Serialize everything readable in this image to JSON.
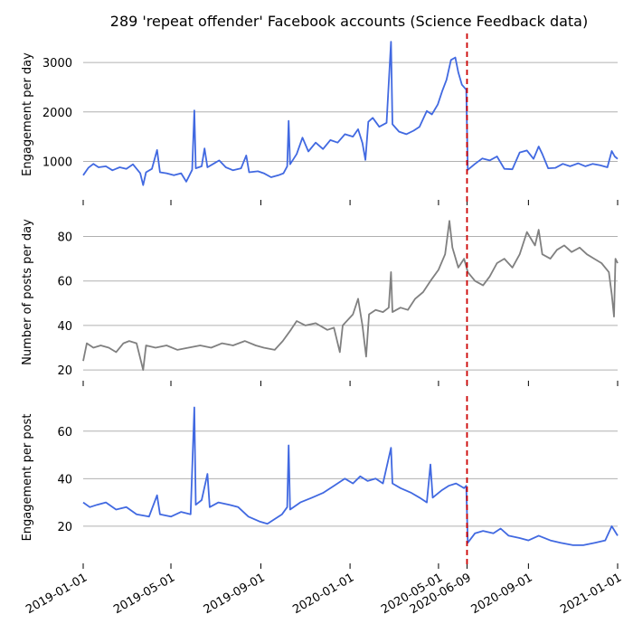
{
  "chart_data": {
    "type": "line",
    "title": "289 'repeat offender' Facebook accounts (Science Feedback data)",
    "x_range": [
      "2019-01-01",
      "2021-01-01"
    ],
    "x_ticks": [
      "2019-01-01",
      "2019-05-01",
      "2019-09-01",
      "2020-01-01",
      "2020-05-01",
      "2020-06-09",
      "2020-09-01",
      "2021-01-01"
    ],
    "highlight_tick": "2020-06-09",
    "highlight_color": "#ff0000",
    "vline": {
      "x": "2020-06-09",
      "color": "#cc0000",
      "style": "dashed"
    },
    "grid": "y-only",
    "panels": [
      {
        "ylabel": "Engagement per day",
        "color": "#4169e1",
        "ylim": [
          350,
          3550
        ],
        "yticks": [
          1000,
          2000,
          3000
        ],
        "series": [
          {
            "x": "2019-01-01",
            "y": 720
          },
          {
            "x": "2019-01-08",
            "y": 870
          },
          {
            "x": "2019-01-15",
            "y": 950
          },
          {
            "x": "2019-01-22",
            "y": 880
          },
          {
            "x": "2019-02-01",
            "y": 900
          },
          {
            "x": "2019-02-10",
            "y": 820
          },
          {
            "x": "2019-02-20",
            "y": 880
          },
          {
            "x": "2019-03-01",
            "y": 850
          },
          {
            "x": "2019-03-10",
            "y": 940
          },
          {
            "x": "2019-03-20",
            "y": 760
          },
          {
            "x": "2019-03-24",
            "y": 520
          },
          {
            "x": "2019-03-28",
            "y": 780
          },
          {
            "x": "2019-04-05",
            "y": 850
          },
          {
            "x": "2019-04-12",
            "y": 1230
          },
          {
            "x": "2019-04-16",
            "y": 780
          },
          {
            "x": "2019-04-25",
            "y": 760
          },
          {
            "x": "2019-05-05",
            "y": 720
          },
          {
            "x": "2019-05-15",
            "y": 760
          },
          {
            "x": "2019-05-22",
            "y": 590
          },
          {
            "x": "2019-05-30",
            "y": 830
          },
          {
            "x": "2019-06-02",
            "y": 2030
          },
          {
            "x": "2019-06-04",
            "y": 860
          },
          {
            "x": "2019-06-12",
            "y": 900
          },
          {
            "x": "2019-06-16",
            "y": 1260
          },
          {
            "x": "2019-06-20",
            "y": 880
          },
          {
            "x": "2019-06-28",
            "y": 950
          },
          {
            "x": "2019-07-06",
            "y": 1020
          },
          {
            "x": "2019-07-15",
            "y": 880
          },
          {
            "x": "2019-07-25",
            "y": 820
          },
          {
            "x": "2019-08-05",
            "y": 860
          },
          {
            "x": "2019-08-12",
            "y": 1120
          },
          {
            "x": "2019-08-16",
            "y": 780
          },
          {
            "x": "2019-08-28",
            "y": 800
          },
          {
            "x": "2019-09-05",
            "y": 760
          },
          {
            "x": "2019-09-15",
            "y": 680
          },
          {
            "x": "2019-09-25",
            "y": 720
          },
          {
            "x": "2019-10-02",
            "y": 760
          },
          {
            "x": "2019-10-07",
            "y": 900
          },
          {
            "x": "2019-10-09",
            "y": 1820
          },
          {
            "x": "2019-10-11",
            "y": 940
          },
          {
            "x": "2019-10-20",
            "y": 1150
          },
          {
            "x": "2019-10-28",
            "y": 1480
          },
          {
            "x": "2019-11-05",
            "y": 1200
          },
          {
            "x": "2019-11-15",
            "y": 1380
          },
          {
            "x": "2019-11-25",
            "y": 1250
          },
          {
            "x": "2019-12-05",
            "y": 1430
          },
          {
            "x": "2019-12-15",
            "y": 1380
          },
          {
            "x": "2019-12-25",
            "y": 1550
          },
          {
            "x": "2020-01-05",
            "y": 1500
          },
          {
            "x": "2020-01-12",
            "y": 1650
          },
          {
            "x": "2020-01-18",
            "y": 1370
          },
          {
            "x": "2020-01-22",
            "y": 1030
          },
          {
            "x": "2020-01-26",
            "y": 1800
          },
          {
            "x": "2020-02-01",
            "y": 1880
          },
          {
            "x": "2020-02-10",
            "y": 1700
          },
          {
            "x": "2020-02-20",
            "y": 1780
          },
          {
            "x": "2020-02-26",
            "y": 3420
          },
          {
            "x": "2020-02-28",
            "y": 1750
          },
          {
            "x": "2020-03-08",
            "y": 1600
          },
          {
            "x": "2020-03-18",
            "y": 1550
          },
          {
            "x": "2020-03-28",
            "y": 1620
          },
          {
            "x": "2020-04-05",
            "y": 1700
          },
          {
            "x": "2020-04-15",
            "y": 2020
          },
          {
            "x": "2020-04-22",
            "y": 1950
          },
          {
            "x": "2020-04-30",
            "y": 2150
          },
          {
            "x": "2020-05-06",
            "y": 2420
          },
          {
            "x": "2020-05-12",
            "y": 2650
          },
          {
            "x": "2020-05-18",
            "y": 3050
          },
          {
            "x": "2020-05-24",
            "y": 3100
          },
          {
            "x": "2020-05-28",
            "y": 2800
          },
          {
            "x": "2020-06-02",
            "y": 2550
          },
          {
            "x": "2020-06-08",
            "y": 2450
          },
          {
            "x": "2020-06-10",
            "y": 830
          },
          {
            "x": "2020-06-20",
            "y": 950
          },
          {
            "x": "2020-06-30",
            "y": 1060
          },
          {
            "x": "2020-07-10",
            "y": 1020
          },
          {
            "x": "2020-07-20",
            "y": 1100
          },
          {
            "x": "2020-07-30",
            "y": 850
          },
          {
            "x": "2020-08-10",
            "y": 840
          },
          {
            "x": "2020-08-20",
            "y": 1180
          },
          {
            "x": "2020-08-30",
            "y": 1220
          },
          {
            "x": "2020-09-08",
            "y": 1050
          },
          {
            "x": "2020-09-15",
            "y": 1300
          },
          {
            "x": "2020-09-20",
            "y": 1150
          },
          {
            "x": "2020-09-28",
            "y": 860
          },
          {
            "x": "2020-10-08",
            "y": 870
          },
          {
            "x": "2020-10-18",
            "y": 950
          },
          {
            "x": "2020-10-28",
            "y": 900
          },
          {
            "x": "2020-11-08",
            "y": 960
          },
          {
            "x": "2020-11-18",
            "y": 900
          },
          {
            "x": "2020-11-28",
            "y": 950
          },
          {
            "x": "2020-12-08",
            "y": 920
          },
          {
            "x": "2020-12-18",
            "y": 880
          },
          {
            "x": "2020-12-24",
            "y": 1210
          },
          {
            "x": "2020-12-28",
            "y": 1100
          },
          {
            "x": "2021-01-01",
            "y": 1050
          }
        ]
      },
      {
        "ylabel": "Number of posts per day",
        "color": "#808080",
        "ylim": [
          18,
          92
        ],
        "yticks": [
          20,
          40,
          60,
          80
        ],
        "series": [
          {
            "x": "2019-01-01",
            "y": 24
          },
          {
            "x": "2019-01-06",
            "y": 32
          },
          {
            "x": "2019-01-15",
            "y": 30
          },
          {
            "x": "2019-01-25",
            "y": 31
          },
          {
            "x": "2019-02-05",
            "y": 30
          },
          {
            "x": "2019-02-15",
            "y": 28
          },
          {
            "x": "2019-02-25",
            "y": 32
          },
          {
            "x": "2019-03-05",
            "y": 33
          },
          {
            "x": "2019-03-15",
            "y": 32
          },
          {
            "x": "2019-03-24",
            "y": 20
          },
          {
            "x": "2019-03-28",
            "y": 31
          },
          {
            "x": "2019-04-10",
            "y": 30
          },
          {
            "x": "2019-04-25",
            "y": 31
          },
          {
            "x": "2019-05-10",
            "y": 29
          },
          {
            "x": "2019-05-25",
            "y": 30
          },
          {
            "x": "2019-06-10",
            "y": 31
          },
          {
            "x": "2019-06-25",
            "y": 30
          },
          {
            "x": "2019-07-10",
            "y": 32
          },
          {
            "x": "2019-07-25",
            "y": 31
          },
          {
            "x": "2019-08-10",
            "y": 33
          },
          {
            "x": "2019-08-25",
            "y": 31
          },
          {
            "x": "2019-09-05",
            "y": 30
          },
          {
            "x": "2019-09-20",
            "y": 29
          },
          {
            "x": "2019-10-01",
            "y": 33
          },
          {
            "x": "2019-10-12",
            "y": 38
          },
          {
            "x": "2019-10-20",
            "y": 42
          },
          {
            "x": "2019-11-01",
            "y": 40
          },
          {
            "x": "2019-11-15",
            "y": 41
          },
          {
            "x": "2019-12-01",
            "y": 38
          },
          {
            "x": "2019-12-10",
            "y": 39
          },
          {
            "x": "2019-12-18",
            "y": 28
          },
          {
            "x": "2019-12-22",
            "y": 40
          },
          {
            "x": "2020-01-05",
            "y": 45
          },
          {
            "x": "2020-01-12",
            "y": 52
          },
          {
            "x": "2020-01-18",
            "y": 40
          },
          {
            "x": "2020-01-23",
            "y": 26
          },
          {
            "x": "2020-01-27",
            "y": 45
          },
          {
            "x": "2020-02-05",
            "y": 47
          },
          {
            "x": "2020-02-15",
            "y": 46
          },
          {
            "x": "2020-02-23",
            "y": 48
          },
          {
            "x": "2020-02-26",
            "y": 64
          },
          {
            "x": "2020-02-28",
            "y": 46
          },
          {
            "x": "2020-03-10",
            "y": 48
          },
          {
            "x": "2020-03-20",
            "y": 47
          },
          {
            "x": "2020-03-30",
            "y": 52
          },
          {
            "x": "2020-04-10",
            "y": 55
          },
          {
            "x": "2020-04-20",
            "y": 60
          },
          {
            "x": "2020-05-01",
            "y": 65
          },
          {
            "x": "2020-05-10",
            "y": 72
          },
          {
            "x": "2020-05-16",
            "y": 87
          },
          {
            "x": "2020-05-20",
            "y": 75
          },
          {
            "x": "2020-05-28",
            "y": 66
          },
          {
            "x": "2020-06-05",
            "y": 70
          },
          {
            "x": "2020-06-10",
            "y": 64
          },
          {
            "x": "2020-06-20",
            "y": 60
          },
          {
            "x": "2020-07-01",
            "y": 58
          },
          {
            "x": "2020-07-10",
            "y": 62
          },
          {
            "x": "2020-07-20",
            "y": 68
          },
          {
            "x": "2020-07-30",
            "y": 70
          },
          {
            "x": "2020-08-10",
            "y": 66
          },
          {
            "x": "2020-08-20",
            "y": 72
          },
          {
            "x": "2020-08-30",
            "y": 82
          },
          {
            "x": "2020-09-10",
            "y": 76
          },
          {
            "x": "2020-09-15",
            "y": 83
          },
          {
            "x": "2020-09-20",
            "y": 72
          },
          {
            "x": "2020-10-01",
            "y": 70
          },
          {
            "x": "2020-10-10",
            "y": 74
          },
          {
            "x": "2020-10-20",
            "y": 76
          },
          {
            "x": "2020-10-30",
            "y": 73
          },
          {
            "x": "2020-11-10",
            "y": 75
          },
          {
            "x": "2020-11-20",
            "y": 72
          },
          {
            "x": "2020-11-30",
            "y": 70
          },
          {
            "x": "2020-12-10",
            "y": 68
          },
          {
            "x": "2020-12-20",
            "y": 64
          },
          {
            "x": "2020-12-24",
            "y": 54
          },
          {
            "x": "2020-12-27",
            "y": 44
          },
          {
            "x": "2020-12-29",
            "y": 70
          },
          {
            "x": "2021-01-01",
            "y": 68
          }
        ]
      },
      {
        "ylabel": "Engagement per post",
        "color": "#4169e1",
        "ylim": [
          7,
          74
        ],
        "yticks": [
          20,
          40,
          60
        ],
        "series": [
          {
            "x": "2019-01-01",
            "y": 30
          },
          {
            "x": "2019-01-10",
            "y": 28
          },
          {
            "x": "2019-01-20",
            "y": 29
          },
          {
            "x": "2019-02-01",
            "y": 30
          },
          {
            "x": "2019-02-15",
            "y": 27
          },
          {
            "x": "2019-03-01",
            "y": 28
          },
          {
            "x": "2019-03-15",
            "y": 25
          },
          {
            "x": "2019-04-01",
            "y": 24
          },
          {
            "x": "2019-04-12",
            "y": 33
          },
          {
            "x": "2019-04-16",
            "y": 25
          },
          {
            "x": "2019-05-01",
            "y": 24
          },
          {
            "x": "2019-05-15",
            "y": 26
          },
          {
            "x": "2019-05-28",
            "y": 25
          },
          {
            "x": "2019-06-02",
            "y": 70
          },
          {
            "x": "2019-06-04",
            "y": 29
          },
          {
            "x": "2019-06-12",
            "y": 31
          },
          {
            "x": "2019-06-20",
            "y": 42
          },
          {
            "x": "2019-06-23",
            "y": 28
          },
          {
            "x": "2019-07-05",
            "y": 30
          },
          {
            "x": "2019-07-20",
            "y": 29
          },
          {
            "x": "2019-08-01",
            "y": 28
          },
          {
            "x": "2019-08-15",
            "y": 24
          },
          {
            "x": "2019-08-30",
            "y": 22
          },
          {
            "x": "2019-09-10",
            "y": 21
          },
          {
            "x": "2019-09-20",
            "y": 23
          },
          {
            "x": "2019-09-30",
            "y": 25
          },
          {
            "x": "2019-10-07",
            "y": 28
          },
          {
            "x": "2019-10-09",
            "y": 54
          },
          {
            "x": "2019-10-11",
            "y": 27
          },
          {
            "x": "2019-10-25",
            "y": 30
          },
          {
            "x": "2019-11-10",
            "y": 32
          },
          {
            "x": "2019-11-25",
            "y": 34
          },
          {
            "x": "2019-12-10",
            "y": 37
          },
          {
            "x": "2019-12-25",
            "y": 40
          },
          {
            "x": "2020-01-05",
            "y": 38
          },
          {
            "x": "2020-01-15",
            "y": 41
          },
          {
            "x": "2020-01-25",
            "y": 39
          },
          {
            "x": "2020-02-05",
            "y": 40
          },
          {
            "x": "2020-02-15",
            "y": 38
          },
          {
            "x": "2020-02-26",
            "y": 53
          },
          {
            "x": "2020-02-28",
            "y": 38
          },
          {
            "x": "2020-03-10",
            "y": 36
          },
          {
            "x": "2020-03-25",
            "y": 34
          },
          {
            "x": "2020-04-05",
            "y": 32
          },
          {
            "x": "2020-04-15",
            "y": 30
          },
          {
            "x": "2020-04-20",
            "y": 46
          },
          {
            "x": "2020-04-23",
            "y": 32
          },
          {
            "x": "2020-05-05",
            "y": 35
          },
          {
            "x": "2020-05-15",
            "y": 37
          },
          {
            "x": "2020-05-25",
            "y": 38
          },
          {
            "x": "2020-06-05",
            "y": 36
          },
          {
            "x": "2020-06-08",
            "y": 37
          },
          {
            "x": "2020-06-10",
            "y": 13
          },
          {
            "x": "2020-06-20",
            "y": 17
          },
          {
            "x": "2020-07-01",
            "y": 18
          },
          {
            "x": "2020-07-15",
            "y": 17
          },
          {
            "x": "2020-07-25",
            "y": 19
          },
          {
            "x": "2020-08-05",
            "y": 16
          },
          {
            "x": "2020-08-20",
            "y": 15
          },
          {
            "x": "2020-09-01",
            "y": 14
          },
          {
            "x": "2020-09-15",
            "y": 16
          },
          {
            "x": "2020-10-01",
            "y": 14
          },
          {
            "x": "2020-10-15",
            "y": 13
          },
          {
            "x": "2020-11-01",
            "y": 12
          },
          {
            "x": "2020-11-15",
            "y": 12
          },
          {
            "x": "2020-12-01",
            "y": 13
          },
          {
            "x": "2020-12-15",
            "y": 14
          },
          {
            "x": "2020-12-24",
            "y": 20
          },
          {
            "x": "2021-01-01",
            "y": 16
          }
        ]
      }
    ]
  }
}
